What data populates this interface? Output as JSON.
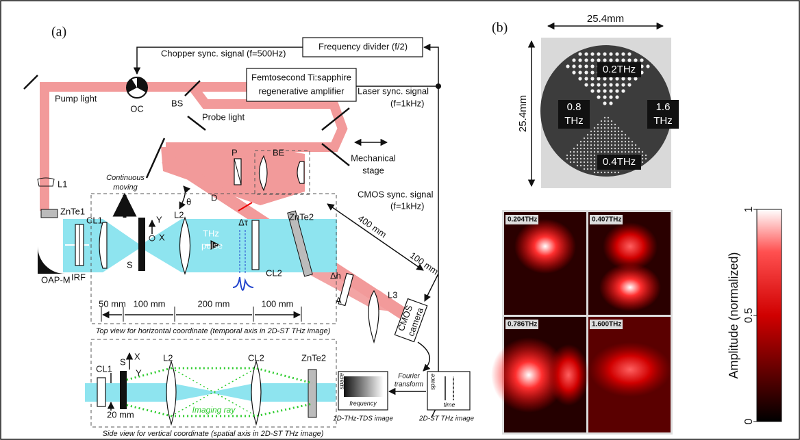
{
  "panel_a": {
    "label": "(a)",
    "frequency_divider": "Frequency divider (f/2)",
    "chopper_signal": "Chopper sync. signal (f=500Hz)",
    "amplifier": [
      "Femtosecond Ti:sapphire",
      "regenerative amplifier"
    ],
    "pump_light": "Pump light",
    "oc": "OC",
    "bs": "BS",
    "probe_light": "Probe light",
    "laser_sync": [
      "Laser sync. signal",
      "(f=1kHz)"
    ],
    "mechanical_stage": [
      "Mechanical",
      "stage"
    ],
    "p": "P",
    "be": "BE",
    "continuous_moving": [
      "Continuous",
      "moving"
    ],
    "l1": "L1",
    "znte1": "ZnTe1",
    "oap_m": "OAP-M",
    "irf": "IRF",
    "cl1": "CL1",
    "s": "S",
    "y": "Y",
    "x": "X",
    "l2": "L2",
    "thz_pulse": [
      "THz",
      "pulse"
    ],
    "delta_tau": "Δτ",
    "theta": "θ",
    "d": "D",
    "cl2": "CL2",
    "cmos_sync": [
      "CMOS sync. signal",
      "(f=1kHz)"
    ],
    "dist_400": "400 mm",
    "dist_100": "100 mm",
    "znte2": "ZnTe2",
    "delta_h": "Δh",
    "a": "A",
    "l3": "L3",
    "dimensions": [
      "50 mm",
      "100 mm",
      "200 mm",
      "100 mm"
    ],
    "top_view_caption": "Top view for horizontal coordinate (temporal axis in 2D-ST THz image)",
    "cmos_camera": [
      "CMOS",
      "camera"
    ],
    "side_view": {
      "cl1": "CL1",
      "s": "S",
      "x": "X",
      "y": "Y",
      "l2": "L2",
      "cl2": "CL2",
      "znte2": "ZnTe2",
      "dist": "20 mm",
      "imaging_ray": "Imaging ray",
      "caption": "Side view for vertical coordinate (spatial axis in 2D-ST THz image)"
    },
    "fourier_transform": [
      "Fourier",
      "transform"
    ],
    "tds_image": {
      "y_label": "space",
      "x_label": "frequency",
      "caption": "1D-THz-TDS image"
    },
    "st_image": {
      "y_label": "space",
      "x_label": "time",
      "caption": "2D-ST THz image"
    }
  },
  "panel_b": {
    "label": "(b)",
    "width": "25.4mm",
    "height": "25.4mm",
    "sector_top": "0.2THz",
    "sector_left": [
      "0.8",
      "THz"
    ],
    "sector_right": [
      "1.6",
      "THz"
    ],
    "sector_bottom": "0.4THz",
    "images": [
      "0.204THz",
      "0.407THz",
      "0.786THz",
      "1.600THz"
    ],
    "colorbar": {
      "title": "Amplitude (normalized)",
      "range": [
        0,
        1
      ],
      "ticks": [
        0,
        0.5,
        1
      ]
    }
  }
}
